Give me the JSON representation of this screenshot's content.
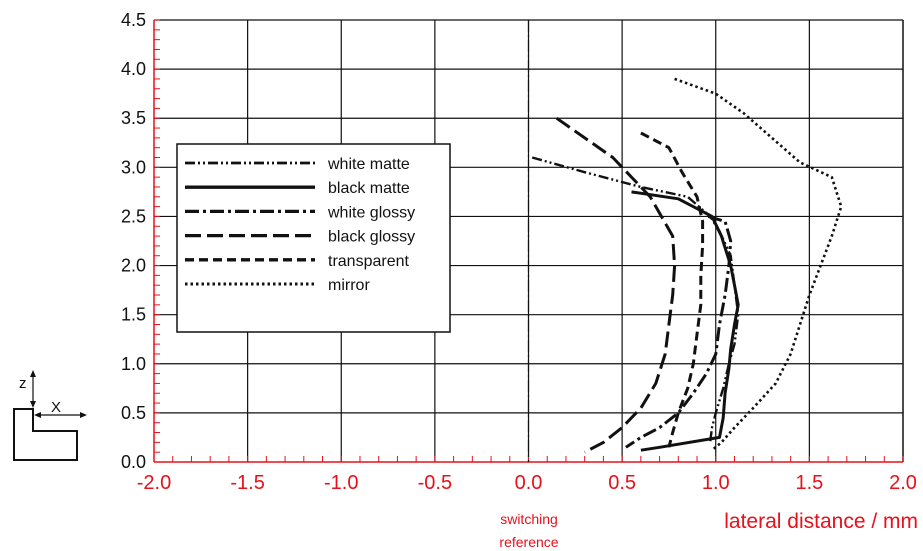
{
  "colors": {
    "accent_red": "#e8101a",
    "grid": "#111111",
    "curve": "#111111"
  },
  "chart_data": {
    "type": "line",
    "title": "",
    "xlabel": "lateral distance / mm",
    "ylabel": "",
    "xlim": [
      -2.0,
      2.0
    ],
    "ylim": [
      0.0,
      4.5
    ],
    "x_ticks": [
      "-2.0",
      "-1.5",
      "-1.0",
      "-0.5",
      "0.0",
      "0.5",
      "1.0",
      "1.5",
      "2.0"
    ],
    "y_ticks": [
      "0.0",
      "0.5",
      "1.0",
      "1.5",
      "2.0",
      "2.5",
      "3.0",
      "3.5",
      "4.0",
      "4.5"
    ],
    "grid": true,
    "legend_position": "left",
    "reference_line": {
      "x": 0.0,
      "label": "switching reference"
    },
    "series": [
      {
        "name": "white matte",
        "dash": "dash-dot-dot",
        "points": [
          [
            0.02,
            3.1
          ],
          [
            0.3,
            2.95
          ],
          [
            0.6,
            2.8
          ],
          [
            0.85,
            2.7
          ],
          [
            0.97,
            2.5
          ],
          [
            1.02,
            2.35
          ],
          [
            1.08,
            2.1
          ],
          [
            1.1,
            1.8
          ],
          [
            1.12,
            1.5
          ],
          [
            1.1,
            1.2
          ],
          [
            1.07,
            1.0
          ],
          [
            1.04,
            0.75
          ],
          [
            1.0,
            0.5
          ],
          [
            0.98,
            0.35
          ],
          [
            0.97,
            0.2
          ]
        ]
      },
      {
        "name": "black matte",
        "dash": "solid",
        "points": [
          [
            0.55,
            2.75
          ],
          [
            0.8,
            2.68
          ],
          [
            0.98,
            2.5
          ],
          [
            1.03,
            2.3
          ],
          [
            1.08,
            2.0
          ],
          [
            1.1,
            1.8
          ],
          [
            1.12,
            1.6
          ],
          [
            1.1,
            1.4
          ],
          [
            1.08,
            1.15
          ],
          [
            1.07,
            0.95
          ],
          [
            1.05,
            0.7
          ],
          [
            1.04,
            0.45
          ],
          [
            1.02,
            0.25
          ],
          [
            0.7,
            0.15
          ],
          [
            0.6,
            0.12
          ]
        ]
      },
      {
        "name": "white glossy",
        "dash": "dash-dot",
        "points": [
          [
            0.96,
            2.5
          ],
          [
            1.05,
            2.45
          ],
          [
            1.08,
            2.25
          ],
          [
            1.07,
            2.0
          ],
          [
            1.05,
            1.7
          ],
          [
            1.02,
            1.4
          ],
          [
            1.0,
            1.1
          ],
          [
            0.95,
            0.9
          ],
          [
            0.88,
            0.7
          ],
          [
            0.8,
            0.5
          ],
          [
            0.7,
            0.35
          ],
          [
            0.6,
            0.25
          ],
          [
            0.52,
            0.15
          ]
        ]
      },
      {
        "name": "black glossy",
        "dash": "long-dash",
        "points": [
          [
            0.15,
            3.5
          ],
          [
            0.45,
            3.1
          ],
          [
            0.65,
            2.7
          ],
          [
            0.77,
            2.3
          ],
          [
            0.78,
            2.0
          ],
          [
            0.77,
            1.7
          ],
          [
            0.75,
            1.4
          ],
          [
            0.73,
            1.1
          ],
          [
            0.68,
            0.8
          ],
          [
            0.6,
            0.55
          ],
          [
            0.5,
            0.35
          ],
          [
            0.4,
            0.2
          ],
          [
            0.3,
            0.1
          ]
        ]
      },
      {
        "name": "transparent",
        "dash": "medium-dash",
        "points": [
          [
            0.6,
            3.35
          ],
          [
            0.75,
            3.2
          ],
          [
            0.82,
            2.95
          ],
          [
            0.9,
            2.7
          ],
          [
            0.93,
            2.45
          ],
          [
            0.93,
            2.2
          ],
          [
            0.92,
            1.9
          ],
          [
            0.92,
            1.6
          ],
          [
            0.9,
            1.3
          ],
          [
            0.88,
            1.0
          ],
          [
            0.85,
            0.75
          ],
          [
            0.8,
            0.5
          ],
          [
            0.77,
            0.3
          ],
          [
            0.75,
            0.15
          ]
        ]
      },
      {
        "name": "mirror",
        "dash": "dotted",
        "points": [
          [
            0.78,
            3.9
          ],
          [
            1.0,
            3.75
          ],
          [
            1.15,
            3.55
          ],
          [
            1.3,
            3.3
          ],
          [
            1.45,
            3.05
          ],
          [
            1.62,
            2.9
          ],
          [
            1.67,
            2.6
          ],
          [
            1.62,
            2.3
          ],
          [
            1.56,
            2.0
          ],
          [
            1.5,
            1.7
          ],
          [
            1.45,
            1.4
          ],
          [
            1.4,
            1.1
          ],
          [
            1.32,
            0.8
          ],
          [
            1.2,
            0.55
          ],
          [
            1.1,
            0.35
          ],
          [
            1.03,
            0.2
          ],
          [
            0.98,
            0.12
          ]
        ]
      }
    ]
  },
  "legend": {
    "items": [
      "white matte",
      "black matte",
      "white glossy",
      "black glossy",
      "transparent",
      "mirror"
    ]
  },
  "coordinate_icon": {
    "z_label": "z",
    "x_label": "X"
  }
}
